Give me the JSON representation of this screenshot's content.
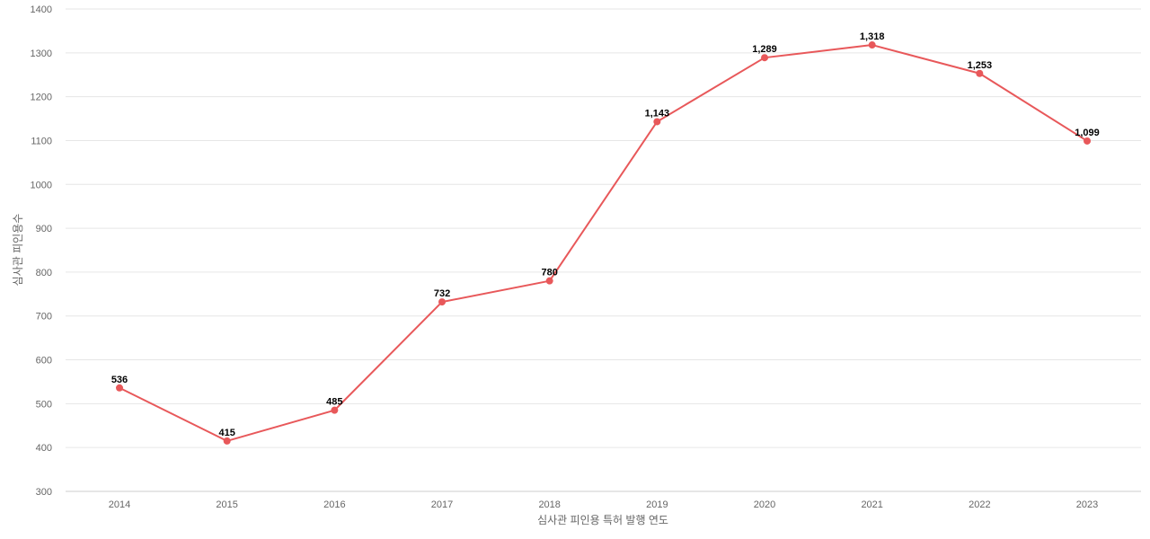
{
  "chart_data": {
    "type": "line",
    "categories": [
      "2014",
      "2015",
      "2016",
      "2017",
      "2018",
      "2019",
      "2020",
      "2021",
      "2022",
      "2023"
    ],
    "series": [
      {
        "values": [
          536,
          415,
          485,
          732,
          780,
          1143,
          1289,
          1318,
          1253,
          1099
        ],
        "data_labels": [
          "536",
          "415",
          "485",
          "732",
          "780",
          "1,143",
          "1,289",
          "1,318",
          "1,253",
          "1,099"
        ],
        "color": "#e8585a"
      }
    ],
    "xlabel": "심사관 피인용 특허 발행 연도",
    "ylabel": "심사관 피인용수",
    "ylim": [
      300,
      1400
    ],
    "yticks": [
      "300",
      "400",
      "500",
      "600",
      "700",
      "800",
      "900",
      "1000",
      "1100",
      "1200",
      "1300",
      "1400"
    ],
    "grid": true,
    "legend": "none"
  }
}
